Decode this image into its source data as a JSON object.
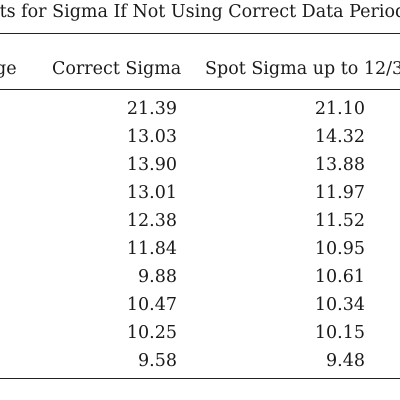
{
  "table": {
    "caption": "lts for Sigma If Not Using Correct Data Period",
    "headers": {
      "range": "ge",
      "correct": "Correct Sigma",
      "spot": "Spot Sigma up to 12/3"
    },
    "rows": [
      {
        "correct": "21.39",
        "spot": "21.10"
      },
      {
        "correct": "13.03",
        "spot": "14.32"
      },
      {
        "correct": "13.90",
        "spot": "13.88"
      },
      {
        "correct": "13.01",
        "spot": "11.97"
      },
      {
        "correct": "12.38",
        "spot": "11.52"
      },
      {
        "correct": "11.84",
        "spot": "10.95"
      },
      {
        "correct": "9.88",
        "spot": "10.61"
      },
      {
        "correct": "10.47",
        "spot": "10.34"
      },
      {
        "correct": "10.25",
        "spot": "10.15"
      },
      {
        "correct": "9.58",
        "spot": "9.48"
      }
    ]
  }
}
